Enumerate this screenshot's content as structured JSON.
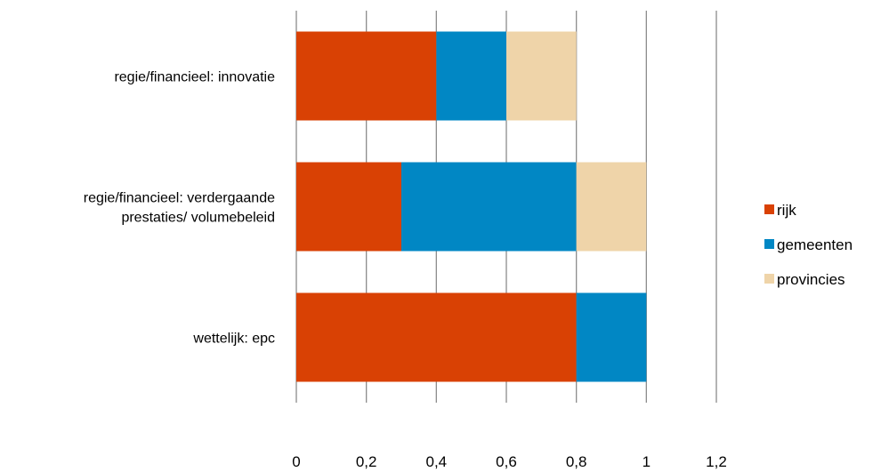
{
  "chart_data": {
    "type": "bar",
    "orientation": "horizontal",
    "stacked": true,
    "categories": [
      [
        "regie/financieel: innovatie"
      ],
      [
        "regie/financieel: verdergaande",
        "prestaties/ volumebeleid"
      ],
      [
        "wettelijk: epc"
      ]
    ],
    "series": [
      {
        "name": "rijk",
        "color": "#d94104",
        "values": [
          0.4,
          0.3,
          0.8
        ]
      },
      {
        "name": "gemeenten",
        "color": "#0187c4",
        "values": [
          0.2,
          0.5,
          0.2
        ]
      },
      {
        "name": "provincies",
        "color": "#efd4a9",
        "values": [
          0.2,
          0.2,
          0
        ]
      }
    ],
    "xlim": [
      0,
      1.2
    ],
    "x_ticks": [
      "0",
      "0,2",
      "0,4",
      "0,6",
      "0,8",
      "1",
      "1,2"
    ],
    "grid": true,
    "grid_color": "#8c8c8c",
    "legend_position": "right"
  }
}
